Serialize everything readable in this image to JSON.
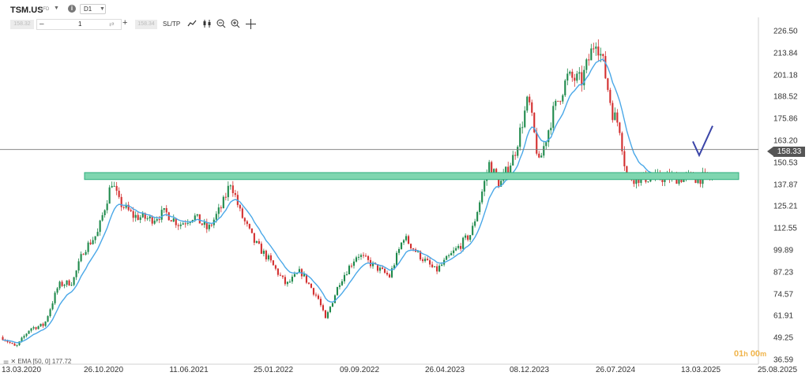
{
  "header": {
    "symbol": "TSM.US",
    "symbol_badge": "CFD",
    "timeframe": "D1",
    "sell_price": "158.32",
    "quantity": "1",
    "buy_price": "158.34",
    "sltp_label": "SL/TP",
    "tools": [
      "line-chart-icon",
      "candles-icon",
      "zoom-out-icon",
      "zoom-in-icon",
      "crosshair-icon"
    ]
  },
  "indicator_label": "EMA [50, 0] 177.72",
  "timer": {
    "hours": "01",
    "h": "h",
    "minutes": "00",
    "m": "m"
  },
  "colors": {
    "up": "#1f8a4c",
    "down": "#d32f2f",
    "ema": "#4aa8e8",
    "zone_fill": "#7fd6b0",
    "zone_stroke": "#2fae7e",
    "arrow": "#3b45a8"
  },
  "chart_data": {
    "type": "candlestick",
    "symbol": "TSM.US",
    "timeframe": "D1",
    "last_price": 158.33,
    "x_ticks": [
      "13.03.2020",
      "26.10.2020",
      "11.06.2021",
      "25.01.2022",
      "09.09.2022",
      "26.04.2023",
      "08.12.2023",
      "26.07.2024",
      "13.03.2025",
      "25.08.2025"
    ],
    "y_ticks": [
      36.59,
      49.25,
      61.91,
      74.57,
      87.23,
      99.89,
      112.55,
      125.21,
      137.87,
      150.53,
      163.2,
      175.86,
      188.52,
      201.18,
      213.84,
      226.5
    ],
    "ylim": [
      36.59,
      229
    ],
    "support_zone": {
      "low": 141,
      "high": 145,
      "from": "26.10.2020",
      "to": "after 13.03.2025"
    },
    "projection": [
      {
        "date": "13.03.2025",
        "price": 163
      },
      {
        "date": "mid-03.2025",
        "price": 155
      },
      {
        "date": "04.2025",
        "price": 172
      }
    ],
    "ema": {
      "period": 50,
      "value": 177.72
    },
    "price_path": [
      {
        "x": 0,
        "p": 50
      },
      {
        "x": 0.02,
        "p": 44
      },
      {
        "x": 0.04,
        "p": 55
      },
      {
        "x": 0.06,
        "p": 57
      },
      {
        "x": 0.08,
        "p": 80
      },
      {
        "x": 0.1,
        "p": 82
      },
      {
        "x": 0.115,
        "p": 100
      },
      {
        "x": 0.135,
        "p": 110
      },
      {
        "x": 0.155,
        "p": 140
      },
      {
        "x": 0.165,
        "p": 128
      },
      {
        "x": 0.185,
        "p": 120
      },
      {
        "x": 0.21,
        "p": 118
      },
      {
        "x": 0.23,
        "p": 122
      },
      {
        "x": 0.25,
        "p": 115
      },
      {
        "x": 0.27,
        "p": 120
      },
      {
        "x": 0.29,
        "p": 112
      },
      {
        "x": 0.31,
        "p": 126
      },
      {
        "x": 0.322,
        "p": 140
      },
      {
        "x": 0.335,
        "p": 122
      },
      {
        "x": 0.355,
        "p": 105
      },
      {
        "x": 0.375,
        "p": 95
      },
      {
        "x": 0.4,
        "p": 80
      },
      {
        "x": 0.42,
        "p": 88
      },
      {
        "x": 0.445,
        "p": 72
      },
      {
        "x": 0.455,
        "p": 60
      },
      {
        "x": 0.475,
        "p": 82
      },
      {
        "x": 0.5,
        "p": 98
      },
      {
        "x": 0.52,
        "p": 92
      },
      {
        "x": 0.545,
        "p": 85
      },
      {
        "x": 0.565,
        "p": 108
      },
      {
        "x": 0.585,
        "p": 98
      },
      {
        "x": 0.61,
        "p": 88
      },
      {
        "x": 0.635,
        "p": 99
      },
      {
        "x": 0.66,
        "p": 110
      },
      {
        "x": 0.685,
        "p": 150
      },
      {
        "x": 0.7,
        "p": 138
      },
      {
        "x": 0.72,
        "p": 155
      },
      {
        "x": 0.74,
        "p": 188
      },
      {
        "x": 0.755,
        "p": 150
      },
      {
        "x": 0.775,
        "p": 180
      },
      {
        "x": 0.795,
        "p": 200
      },
      {
        "x": 0.815,
        "p": 198
      },
      {
        "x": 0.835,
        "p": 223
      },
      {
        "x": 0.845,
        "p": 208
      },
      {
        "x": 0.858,
        "p": 180
      },
      {
        "x": 0.868,
        "p": 172
      },
      {
        "x": 0.878,
        "p": 142
      }
    ]
  }
}
